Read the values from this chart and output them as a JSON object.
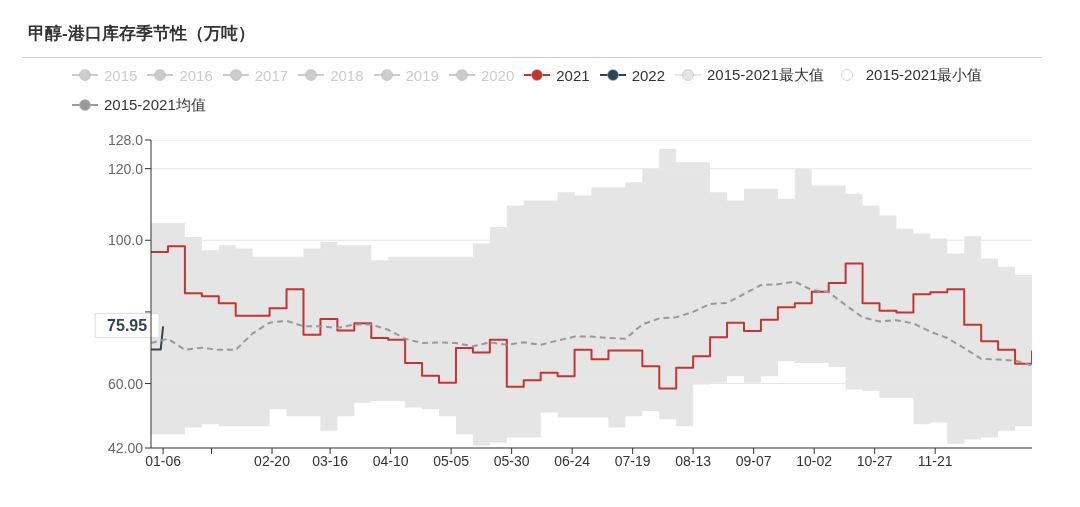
{
  "chart_data": {
    "type": "step",
    "title": "甲醇-港口库存季节性（万吨）",
    "x": [
      "--01-01",
      "--01-08",
      "--01-15",
      "--01-22",
      "--01-29",
      "--02-05",
      "--02-12",
      "--02-19",
      "--02-26",
      "--03-05",
      "--03-12",
      "--03-19",
      "--03-26",
      "--04-02",
      "--04-09",
      "--04-16",
      "--04-23",
      "--04-30",
      "--05-07",
      "--05-14",
      "--05-21",
      "--05-28",
      "--06-04",
      "--06-11",
      "--06-18",
      "--06-25",
      "--07-02",
      "--07-09",
      "--07-16",
      "--07-23",
      "--07-30",
      "--08-06",
      "--08-13",
      "--08-20",
      "--08-27",
      "--09-03",
      "--09-10",
      "--09-17",
      "--09-24",
      "--10-01",
      "--10-08",
      "--10-15",
      "--10-22",
      "--10-29",
      "--11-05",
      "--11-12",
      "--11-19",
      "--11-26",
      "--12-03",
      "--12-10",
      "--12-17",
      "--12-24",
      "--12-31"
    ],
    "series": [
      {
        "name": "2015",
        "color": "#cccccc",
        "values": [
          null,
          null,
          null,
          null,
          null,
          null,
          null,
          null,
          null,
          null,
          null,
          null,
          null,
          null,
          null,
          null,
          null,
          null,
          null,
          null,
          null,
          null,
          null,
          null,
          null,
          null,
          null,
          null,
          null,
          null,
          null,
          null,
          null,
          null,
          null,
          null,
          null,
          null,
          null,
          null,
          null,
          null,
          null,
          null,
          null,
          null,
          null,
          null,
          null,
          null,
          null,
          null,
          null
        ]
      },
      {
        "name": "2016",
        "color": "#cccccc",
        "values": [
          null,
          null,
          null,
          null,
          null,
          null,
          null,
          null,
          null,
          null,
          null,
          null,
          null,
          null,
          null,
          null,
          null,
          null,
          null,
          null,
          null,
          null,
          null,
          null,
          null,
          null,
          null,
          null,
          null,
          null,
          null,
          null,
          null,
          null,
          null,
          null,
          null,
          null,
          null,
          null,
          null,
          null,
          null,
          null,
          null,
          null,
          null,
          null,
          null,
          null,
          null,
          null,
          null
        ]
      },
      {
        "name": "2017",
        "color": "#cccccc",
        "values": [
          null,
          null,
          null,
          null,
          null,
          null,
          null,
          null,
          null,
          null,
          null,
          null,
          null,
          null,
          null,
          null,
          null,
          null,
          null,
          null,
          null,
          null,
          null,
          null,
          null,
          null,
          null,
          null,
          null,
          null,
          null,
          null,
          null,
          null,
          null,
          null,
          null,
          null,
          null,
          null,
          null,
          null,
          null,
          null,
          null,
          null,
          null,
          null,
          null,
          null,
          null,
          null,
          null
        ]
      },
      {
        "name": "2018",
        "color": "#cccccc",
        "values": [
          null,
          null,
          null,
          null,
          null,
          null,
          null,
          null,
          null,
          null,
          null,
          null,
          null,
          null,
          null,
          null,
          null,
          null,
          null,
          null,
          null,
          null,
          null,
          null,
          null,
          null,
          null,
          null,
          null,
          null,
          null,
          null,
          null,
          null,
          null,
          null,
          null,
          null,
          null,
          null,
          null,
          null,
          null,
          null,
          null,
          null,
          null,
          null,
          null,
          null,
          null,
          null,
          null
        ]
      },
      {
        "name": "2019",
        "color": "#cccccc",
        "values": [
          null,
          null,
          null,
          null,
          null,
          null,
          null,
          null,
          null,
          null,
          null,
          null,
          null,
          null,
          null,
          null,
          null,
          null,
          null,
          null,
          null,
          null,
          null,
          null,
          null,
          null,
          null,
          null,
          null,
          null,
          null,
          null,
          null,
          null,
          null,
          null,
          null,
          null,
          null,
          null,
          null,
          null,
          null,
          null,
          null,
          null,
          null,
          null,
          null,
          null,
          null,
          null,
          null
        ]
      },
      {
        "name": "2020",
        "color": "#cccccc",
        "values": [
          null,
          null,
          null,
          null,
          null,
          null,
          null,
          null,
          null,
          null,
          null,
          null,
          null,
          null,
          null,
          null,
          null,
          null,
          null,
          null,
          null,
          null,
          null,
          null,
          null,
          null,
          null,
          null,
          null,
          null,
          null,
          null,
          null,
          null,
          null,
          null,
          null,
          null,
          null,
          null,
          null,
          null,
          null,
          null,
          null,
          null,
          null,
          null,
          null,
          null,
          null,
          null,
          null
        ]
      },
      {
        "name": "2021",
        "color": "#c23531",
        "values": [
          96.7,
          98.3,
          85.2,
          84.4,
          82.4,
          78.9,
          78.9,
          81.0,
          86.3,
          73.6,
          78.0,
          74.8,
          76.8,
          72.7,
          72.2,
          65.7,
          62.2,
          60.2,
          69.9,
          68.7,
          72.2,
          59.1,
          60.9,
          63.0,
          62.0,
          69.4,
          66.8,
          69.2,
          69.2,
          64.8,
          58.6,
          64.4,
          67.6,
          72.9,
          77.0,
          74.7,
          77.8,
          81.3,
          82.4,
          85.6,
          88.1,
          93.5,
          82.4,
          80.3,
          79.8,
          84.9,
          85.5,
          86.3,
          76.4,
          71.8,
          69.4,
          65.5,
          69.2
        ]
      },
      {
        "name": "2022",
        "type": "line",
        "color": "#2f4554",
        "x": [
          "--01-01",
          "--01-05",
          "--01-06"
        ],
        "values": [
          69.5,
          69.5,
          75.95
        ],
        "value_labels": [
          null,
          null,
          "75.95"
        ]
      },
      {
        "name": "2015-2021最大值",
        "type": "area",
        "color": "#e5e5e5",
        "values": [
          104.8,
          104.8,
          100.9,
          97.2,
          98.6,
          97.7,
          95.4,
          95.4,
          95.4,
          97.7,
          99.5,
          98.6,
          98.6,
          94.4,
          95.4,
          95.4,
          95.4,
          95.4,
          95.4,
          99.1,
          103.7,
          109.7,
          111.1,
          111.1,
          113.4,
          112.5,
          114.8,
          114.8,
          116.2,
          119.9,
          125.5,
          121.8,
          121.8,
          113.4,
          111.1,
          114.4,
          114.4,
          111.6,
          119.9,
          115.3,
          115.3,
          113.0,
          109.7,
          106.9,
          103.2,
          101.9,
          100.5,
          96.3,
          101.1,
          94.9,
          92.6,
          90.3,
          96.3
        ]
      },
      {
        "name": "2015-2021最小值",
        "type": "area",
        "color": "#ffffff",
        "values": [
          45.8,
          45.8,
          47.7,
          48.6,
          48.1,
          48.1,
          48.1,
          52.8,
          50.9,
          50.9,
          46.8,
          50.9,
          54.6,
          55.1,
          55.1,
          53.3,
          52.8,
          50.9,
          45.8,
          42.6,
          43.5,
          44.9,
          44.9,
          51.9,
          50.5,
          50.5,
          50.5,
          47.7,
          50.9,
          52.3,
          50.0,
          48.1,
          59.7,
          60.2,
          62.0,
          60.2,
          62.0,
          66.2,
          65.7,
          65.7,
          64.6,
          58.3,
          57.9,
          56.0,
          56.0,
          48.6,
          49.1,
          43.1,
          44.4,
          44.9,
          46.8,
          48.1,
          45.8
        ]
      },
      {
        "name": "2015-2021均值",
        "type": "line",
        "color": "#999999",
        "line_style": "dashed",
        "values": [
          71.3,
          72.5,
          69.4,
          70.0,
          69.4,
          69.4,
          74.0,
          77.0,
          77.5,
          76.0,
          76.0,
          75.5,
          76.5,
          76.5,
          75.0,
          72.5,
          71.3,
          71.5,
          71.3,
          70.4,
          71.5,
          70.8,
          71.5,
          70.8,
          72.0,
          73.1,
          73.1,
          72.7,
          72.5,
          76.5,
          78.2,
          78.5,
          80.0,
          82.2,
          82.5,
          85.0,
          87.5,
          87.7,
          88.5,
          86.1,
          85.5,
          81.9,
          78.5,
          77.3,
          77.7,
          76.8,
          74.5,
          72.7,
          69.9,
          66.9,
          66.7,
          66.4,
          65.0
        ]
      }
    ],
    "xlim": [
      "--01-01",
      "--12-31"
    ],
    "xticks": [
      {
        "value": "--01-06",
        "label": "01-06"
      },
      {
        "value": "--01-26",
        "label": null
      },
      {
        "value": "--02-20",
        "label": "02-20"
      },
      {
        "value": "--03-16",
        "label": "03-16"
      },
      {
        "value": "--04-10",
        "label": "04-10"
      },
      {
        "value": "--05-05",
        "label": "05-05"
      },
      {
        "value": "--05-30",
        "label": "05-30"
      },
      {
        "value": "--06-24",
        "label": "06-24"
      },
      {
        "value": "--07-19",
        "label": "07-19"
      },
      {
        "value": "--08-13",
        "label": "08-13"
      },
      {
        "value": "--09-07",
        "label": "09-07"
      },
      {
        "value": "--10-02",
        "label": "10-02"
      },
      {
        "value": "--10-27",
        "label": "10-27"
      },
      {
        "value": "--11-21",
        "label": "11-21"
      }
    ],
    "ylim": [
      42,
      128
    ],
    "yticks": [
      {
        "value": 42,
        "label": "42.00"
      },
      {
        "value": 60,
        "label": "60.00"
      },
      {
        "value": 80,
        "label": null
      },
      {
        "value": 100,
        "label": "100.0"
      },
      {
        "value": 120,
        "label": "120.0"
      },
      {
        "value": 128,
        "label": "128.0"
      }
    ],
    "grid": "y",
    "legend": "top",
    "marker": "none"
  }
}
